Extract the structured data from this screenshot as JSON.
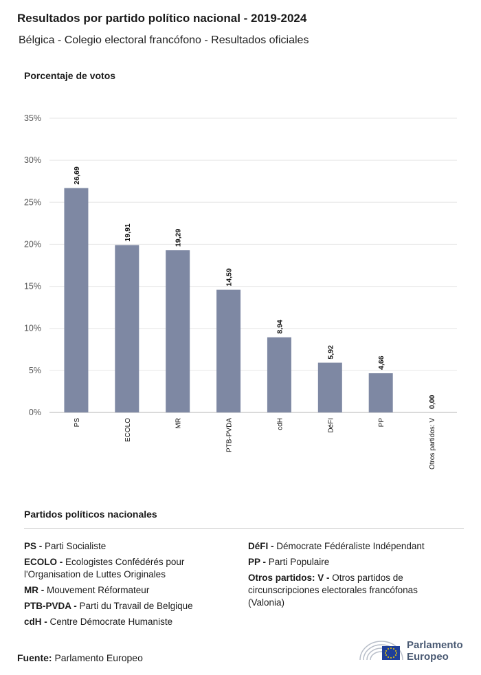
{
  "header": {
    "title": "Resultados por partido político nacional - 2019-2024",
    "subtitle": "Bélgica - Colegio electoral francófono - Resultados oficiales"
  },
  "chart_data": {
    "type": "bar",
    "title": "Resultados por partido político nacional - 2019-2024",
    "ylabel": "Porcentaje de votos",
    "xlabel": "",
    "categories": [
      "PS",
      "ECOLO",
      "MR",
      "PTB-PVDA",
      "cdH",
      "DéFI",
      "PP",
      "Otros partidos: V"
    ],
    "values": [
      26.69,
      19.91,
      19.29,
      14.59,
      8.94,
      5.92,
      4.66,
      0.0
    ],
    "value_labels": [
      "26,69",
      "19,91",
      "19,29",
      "14,59",
      "8,94",
      "5,92",
      "4,66",
      "0,00"
    ],
    "ylim": [
      0,
      35
    ],
    "yticks": [
      0,
      5,
      10,
      15,
      20,
      25,
      30,
      35
    ],
    "ytick_labels": [
      "0%",
      "5%",
      "10%",
      "15%",
      "20%",
      "25%",
      "30%",
      "35%"
    ],
    "bar_color": "#7e88a3",
    "grid": true
  },
  "legend": {
    "title": "Partidos políticos nacionales",
    "left": [
      {
        "abbr": "PS -",
        "name": "Parti Socialiste"
      },
      {
        "abbr": "ECOLO -",
        "name": "Ecologistes Confédérés pour l'Organisation de Luttes Originales"
      },
      {
        "abbr": "MR -",
        "name": "Mouvement Réformateur"
      },
      {
        "abbr": "PTB-PVDA -",
        "name": "Parti du Travail de Belgique"
      },
      {
        "abbr": "cdH -",
        "name": "Centre Démocrate Humaniste"
      }
    ],
    "right": [
      {
        "abbr": "DéFI -",
        "name": "Démocrate Fédéraliste Indépendant"
      },
      {
        "abbr": "PP -",
        "name": "Parti Populaire"
      },
      {
        "abbr": "Otros partidos: V -",
        "name": "Otros partidos de circunscripciones electorales francófonas (Valonia)"
      }
    ]
  },
  "footer": {
    "source_label": "Fuente:",
    "source_value": "Parlamento Europeo",
    "logo_line1": "Parlamento",
    "logo_line2": "Europeo"
  }
}
